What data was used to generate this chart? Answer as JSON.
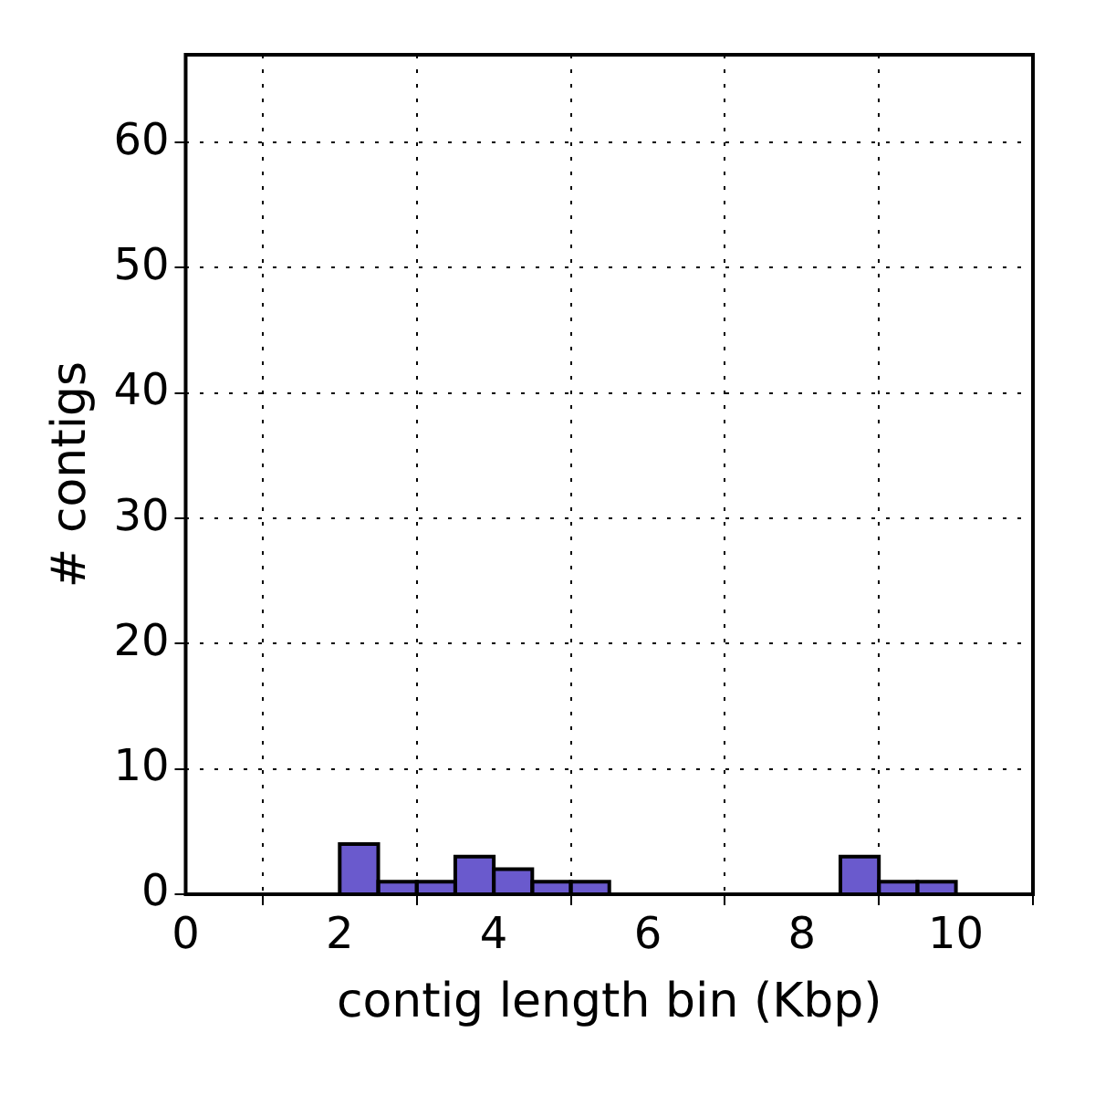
{
  "chart_data": {
    "type": "histogram",
    "xlabel": "contig length bin (Kbp)",
    "ylabel": "# contigs",
    "bins": [
      0,
      0.5,
      1,
      1.5,
      2,
      2.5,
      3,
      3.5,
      4,
      4.5,
      5,
      5.5,
      6,
      6.5,
      7,
      7.5,
      8,
      8.5,
      9,
      9.5,
      10
    ],
    "values": [
      0,
      0,
      0,
      0,
      4,
      1,
      1,
      3,
      2,
      1,
      1,
      0,
      0,
      0,
      0,
      0,
      0,
      3,
      1,
      1
    ],
    "color": "#6a5acd",
    "xlim": [
      0,
      11
    ],
    "xticks": [
      0,
      2,
      4,
      6,
      8,
      10
    ],
    "ylim": [
      0,
      67
    ],
    "yticks": [
      0,
      10,
      20,
      30,
      40,
      50,
      60
    ],
    "grid": true
  }
}
